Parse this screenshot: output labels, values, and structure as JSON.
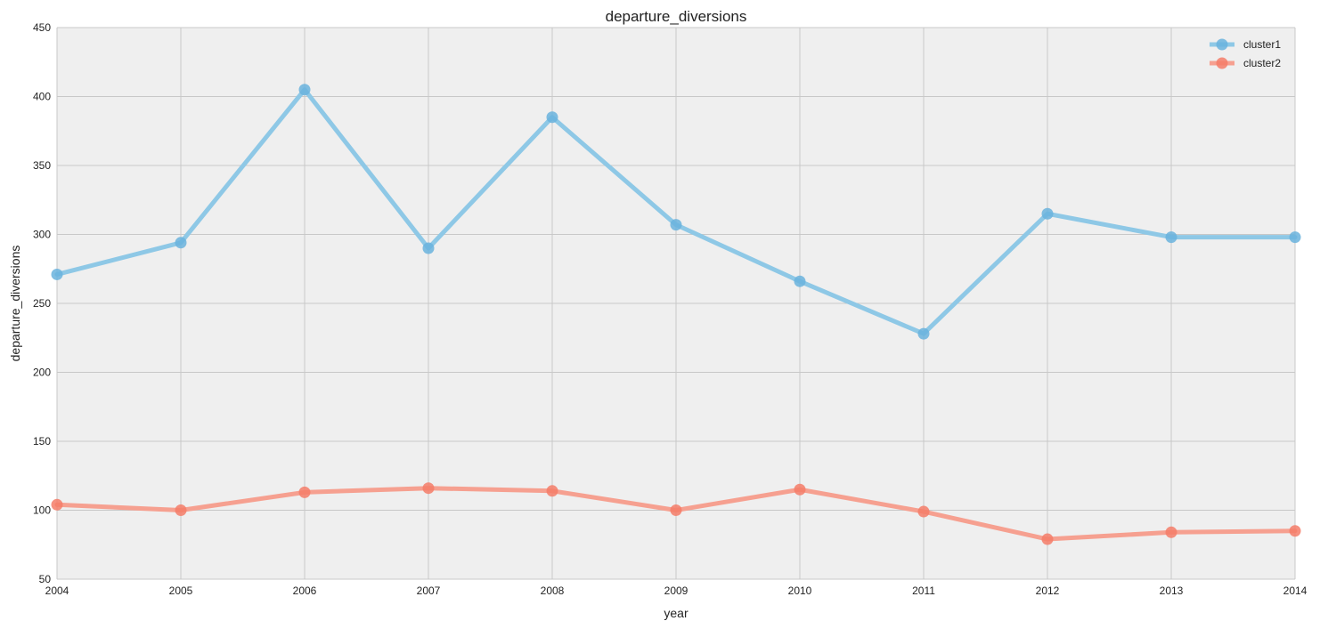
{
  "chart_data": {
    "type": "line",
    "title": "departure_diversions",
    "xlabel": "year",
    "ylabel": "departure_diversions",
    "x": [
      2004,
      2005,
      2006,
      2007,
      2008,
      2009,
      2010,
      2011,
      2012,
      2013,
      2014
    ],
    "xlim": [
      2004,
      2014
    ],
    "ylim": [
      50,
      450
    ],
    "yticks": [
      50,
      100,
      150,
      200,
      250,
      300,
      350,
      400,
      450
    ],
    "grid": true,
    "legend": "top-right",
    "series": [
      {
        "name": "cluster1",
        "color": "#8ec8e6",
        "marker_color": "#6ab3dd",
        "values": [
          271,
          294,
          405,
          290,
          385,
          307,
          266,
          228,
          315,
          298,
          298
        ]
      },
      {
        "name": "cluster2",
        "color": "#f6a090",
        "marker_color": "#f47c68",
        "values": [
          104,
          100,
          113,
          116,
          114,
          100,
          115,
          99,
          79,
          84,
          85
        ]
      }
    ],
    "background": "#efefef",
    "grid_color": "#c8c8c8"
  }
}
